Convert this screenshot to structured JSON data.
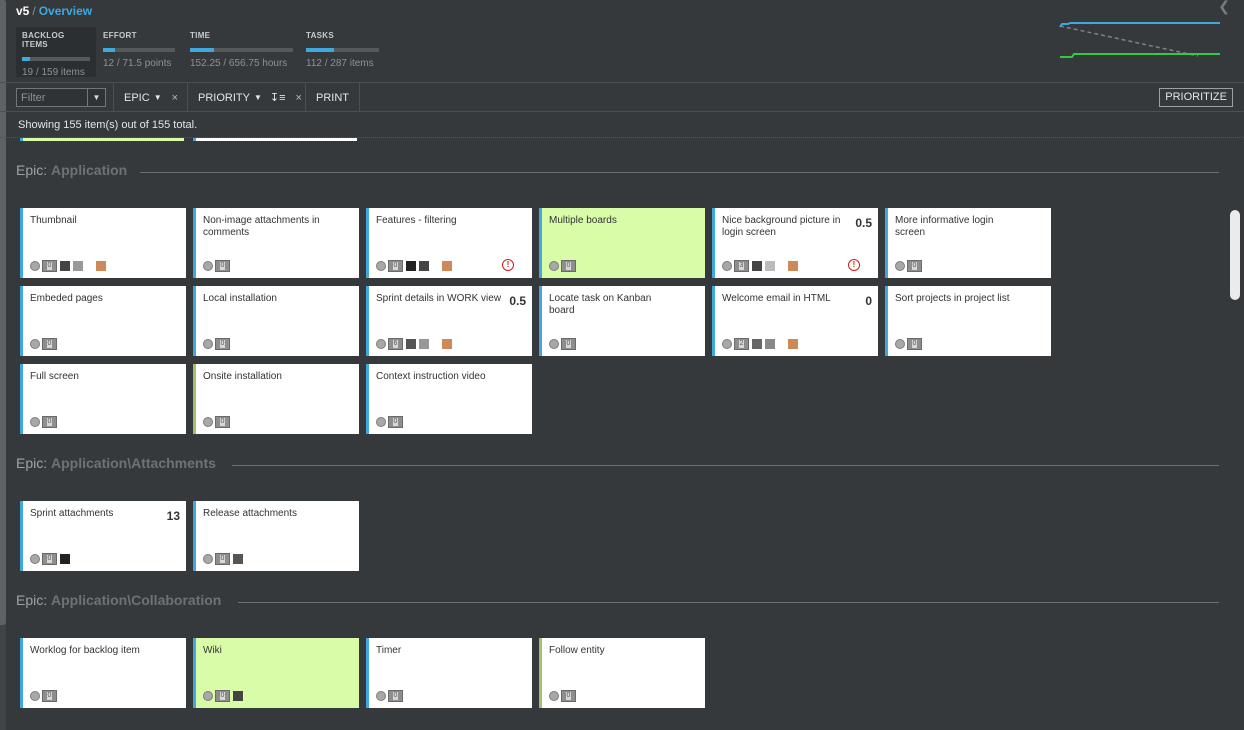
{
  "breadcrumb": {
    "version": "v5",
    "separator": "/",
    "page": "Overview"
  },
  "metrics": [
    {
      "label": "BACKLOG ITEMS",
      "value": "19 / 159 items",
      "progress": 0.12
    },
    {
      "label": "EFFORT",
      "value": "12 / 71.5 points",
      "progress": 0.17
    },
    {
      "label": "TIME",
      "value": "152.25 / 656.75 hours",
      "progress": 0.23
    },
    {
      "label": "TASKS",
      "value": "112 / 287 items",
      "progress": 0.39
    }
  ],
  "toolbar": {
    "filter_placeholder": "Filter",
    "epic_label": "EPIC",
    "priority_label": "PRIORITY",
    "print_label": "PRINT",
    "prioritize_label": "PRIORITIZE",
    "clear_glyph": "×"
  },
  "status": "Showing 155 item(s) out of 155 total.",
  "colors": {
    "accent": "#3fa9de",
    "green_card": "#d8fca8",
    "tag": "#cc8a58",
    "warning": "#d11a1a",
    "background": "#35393c"
  },
  "epics": [
    {
      "prefix": "Epic:",
      "name": "Application",
      "cards": [
        {
          "title": "Thumbnail",
          "count": "0",
          "squares": [
            "#444444",
            "#999999"
          ],
          "tag": true
        },
        {
          "title": "Non-image attachments in comments",
          "count": "0"
        },
        {
          "title": "Features - filtering",
          "count": "0",
          "squares": [
            "#222222",
            "#444444"
          ],
          "tag": true,
          "warn": true
        },
        {
          "title": "Multiple boards",
          "count": "0",
          "green": true
        },
        {
          "title": "Nice background picture in login screen",
          "points": "0.5",
          "count": "3",
          "squares": [
            "#444444",
            "#bbbbbb"
          ],
          "tag": true,
          "warn": true
        },
        {
          "title": "More informative login screen",
          "count": "0"
        },
        {
          "title": "Embeded pages",
          "count": "0"
        },
        {
          "title": "Local installation",
          "count": "0"
        },
        {
          "title": "Sprint details in WORK view",
          "points": "0.5",
          "count": "6",
          "squares": [
            "#555555",
            "#999999"
          ],
          "tag": true
        },
        {
          "title": "Locate task on Kanban board",
          "count": "0"
        },
        {
          "title": "Welcome email in HTML",
          "points": "0",
          "count": "2",
          "squares": [
            "#666666",
            "#888888"
          ],
          "tag": true
        },
        {
          "title": "Sort projects in project list",
          "count": "0"
        },
        {
          "title": "Full screen",
          "count": "0"
        },
        {
          "title": "Onsite installation",
          "count": "0",
          "greenBorder": true
        },
        {
          "title": "Context instruction video",
          "count": "0"
        }
      ]
    },
    {
      "prefix": "Epic:",
      "name": "Application\\Attachments",
      "cards": [
        {
          "title": "Sprint attachments",
          "points": "13",
          "count": "0",
          "squares": [
            "#222222"
          ]
        },
        {
          "title": "Release attachments",
          "count": "0",
          "squares": [
            "#555555"
          ]
        }
      ]
    },
    {
      "prefix": "Epic:",
      "name": "Application\\Collaboration",
      "cards": [
        {
          "title": "Worklog for backlog item",
          "count": "0"
        },
        {
          "title": "Wiki",
          "count": "0",
          "green": true,
          "squares": [
            "#444444"
          ]
        },
        {
          "title": "Timer",
          "count": "0"
        },
        {
          "title": "Follow entity",
          "count": "0",
          "greenBorder": true
        }
      ]
    }
  ]
}
